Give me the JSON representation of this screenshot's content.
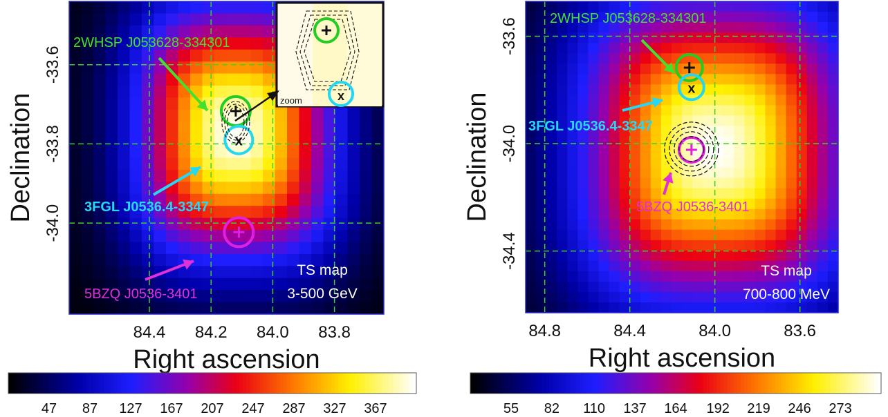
{
  "chart_data": [
    {
      "type": "heatmap",
      "title": "",
      "xlabel": "Right ascension",
      "ylabel": "Declination",
      "x_range": [
        84.66,
        83.64
      ],
      "y_range": [
        -33.44,
        -34.23
      ],
      "x_ticks": [
        "84.4",
        "84.2",
        "84.0",
        "83.8"
      ],
      "x_tick_values": [
        84.4,
        84.2,
        84.0,
        83.8
      ],
      "y_ticks": [
        "-33.6",
        "-33.8",
        "-34.0"
      ],
      "y_tick_values": [
        -33.6,
        -33.8,
        -34.0
      ],
      "grid": true,
      "map_label": "TS map",
      "energy_label": "3-500 GeV",
      "peak": {
        "ra": 84.12,
        "dec": -33.77,
        "size_ra": 0.28,
        "size_dec": 0.28
      },
      "colorbar": {
        "ticks": [
          "47",
          "87",
          "127",
          "167",
          "207",
          "247",
          "287",
          "327",
          "367"
        ],
        "min": 7,
        "max": 407
      },
      "sources": [
        {
          "name": "2WHSP J053628-334301",
          "ra": 84.12,
          "dec": -33.717,
          "marker": "+",
          "circle_color": "#22cc22",
          "label_color": "#44e02e"
        },
        {
          "name": "3FGL J0536.4-3347",
          "ra": 84.11,
          "dec": -33.79,
          "marker": "x",
          "circle_color": "#22d8f0",
          "label_color": "#25d8f5"
        },
        {
          "name": "5BZQ J0536-3401",
          "ra": 84.11,
          "dec": -34.023,
          "marker": "+",
          "circle_color": "#e020e0",
          "label_color": "#e030d8"
        }
      ],
      "inset_label": "zoom"
    },
    {
      "type": "heatmap",
      "title": "",
      "xlabel": "Right ascension",
      "ylabel": "Declination",
      "x_range": [
        84.89,
        83.42
      ],
      "y_range": [
        -33.47,
        -34.63
      ],
      "x_ticks": [
        "84.8",
        "84.4",
        "84.0",
        "83.6"
      ],
      "x_tick_values": [
        84.8,
        84.4,
        84.0,
        83.6
      ],
      "y_ticks": [
        "-33.6",
        "-34.0",
        "-34.4"
      ],
      "y_tick_values": [
        -33.6,
        -34.0,
        -34.4
      ],
      "grid": true,
      "map_label": "TS map",
      "energy_label": "700-800 MeV",
      "peak": {
        "ra": 84.0,
        "dec": -34.02,
        "size_ra": 0.55,
        "size_dec": 0.5
      },
      "colorbar": {
        "ticks": [
          "55",
          "82",
          "110",
          "137",
          "164",
          "192",
          "219",
          "246",
          "273"
        ],
        "min": 28,
        "max": 300
      },
      "sources": [
        {
          "name": "2WHSP J053628-334301",
          "ra": 84.12,
          "dec": -33.717,
          "marker": "+",
          "circle_color": "#22cc22",
          "label_color": "#44e02e"
        },
        {
          "name": "3FGL J0536.4-3347",
          "ra": 84.11,
          "dec": -33.79,
          "marker": "x",
          "circle_color": "#22d8f0",
          "label_color": "#25d8f5"
        },
        {
          "name": "5BZQ J0536-3401",
          "ra": 84.11,
          "dec": -34.023,
          "marker": "+",
          "circle_color": "#e020e0",
          "label_color": "#e030d8"
        }
      ]
    }
  ]
}
